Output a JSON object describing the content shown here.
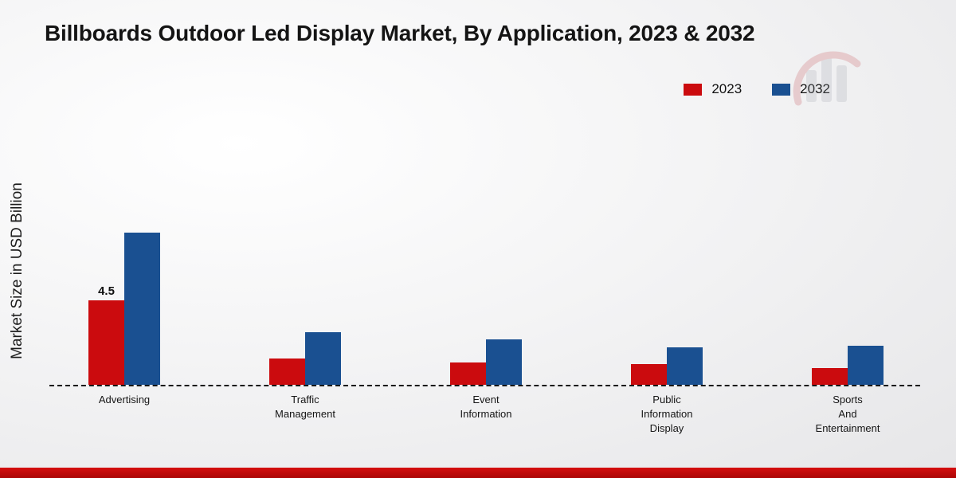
{
  "title": "Billboards Outdoor Led Display Market, By Application, 2023 & 2032",
  "ylabel": "Market Size in USD Billion",
  "colors": {
    "series_2023": "#cb0b0e",
    "series_2032": "#1a5091",
    "bottom_band": "#c90b0b"
  },
  "chart_data": {
    "type": "bar",
    "title": "Billboards Outdoor Led Display Market, By Application, 2023 & 2032",
    "ylabel": "Market Size in USD Billion",
    "xlabel": "",
    "ylim": [
      0,
      9
    ],
    "grid": false,
    "legend_position": "top-right",
    "baseline_style": "dashed",
    "categories": [
      "Advertising",
      "Traffic Management",
      "Event Information",
      "Public Information Display",
      "Sports And Entertainment"
    ],
    "category_lines": [
      [
        "Advertising"
      ],
      [
        "Traffic",
        "Management"
      ],
      [
        "Event",
        "Information"
      ],
      [
        "Public",
        "Information",
        "Display"
      ],
      [
        "Sports",
        "And",
        "Entertainment"
      ]
    ],
    "series": [
      {
        "name": "2023",
        "color": "#cb0b0e",
        "values": [
          4.5,
          1.4,
          1.2,
          1.1,
          0.9
        ]
      },
      {
        "name": "2032",
        "color": "#1a5091",
        "values": [
          8.1,
          2.8,
          2.4,
          2.0,
          2.1
        ]
      }
    ],
    "data_labels": [
      {
        "series": "2023",
        "category": "Advertising",
        "text": "4.5"
      }
    ]
  }
}
